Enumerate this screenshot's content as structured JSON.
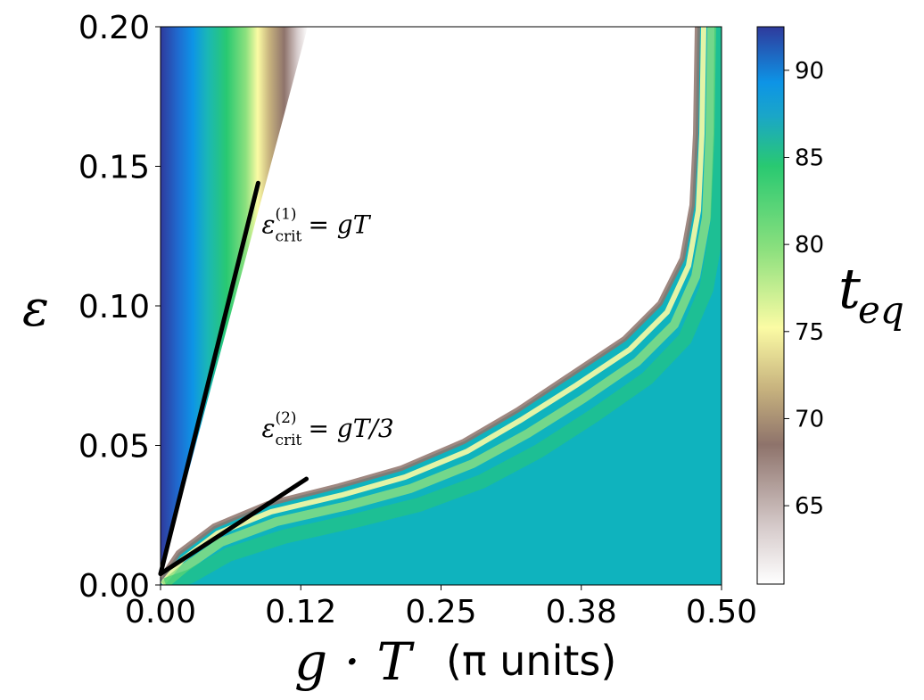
{
  "chart_data": {
    "type": "heatmap",
    "x_ticks": [
      "0.00",
      "0.12",
      "0.25",
      "0.38",
      "0.50"
    ],
    "y_ticks": [
      "0.00",
      "0.05",
      "0.10",
      "0.15",
      "0.20"
    ],
    "xlim": [
      0,
      0.5
    ],
    "ylim": [
      0,
      0.2
    ],
    "xlabel": {
      "var": "g · T",
      "unit": "(π units)"
    },
    "ylabel": "ε",
    "colorbar": {
      "label_base": "t",
      "label_sub": "eq",
      "ticks": [
        "65",
        "70",
        "75",
        "80",
        "85",
        "90"
      ],
      "tick_values": [
        65,
        70,
        75,
        80,
        85,
        90
      ],
      "range": [
        60.5,
        92.5
      ],
      "colors": [
        "#ffffff",
        "#d7cccc",
        "#8e736b",
        "#c7b27e",
        "#fbfba4",
        "#8ce07e",
        "#29c971",
        "#1aa6c8",
        "#0d94e6",
        "#2f3a9c"
      ]
    },
    "annotations": [
      {
        "text_base": "ε",
        "text_sup": "(1)",
        "text_sub": "crit",
        "text_rhs": " = gT",
        "anchor": [
          0.087,
          0.126
        ]
      },
      {
        "text_base": "ε",
        "text_sup": "(2)",
        "text_sub": "crit",
        "text_rhs": " = gT/3",
        "anchor": [
          0.087,
          0.053
        ]
      }
    ],
    "lines": [
      {
        "name": "eps-crit-1",
        "points": [
          [
            0.0,
            0.004
          ],
          [
            0.087,
            0.144
          ]
        ]
      },
      {
        "name": "eps-crit-2",
        "points": [
          [
            0.0,
            0.004
          ],
          [
            0.13,
            0.038
          ]
        ]
      }
    ]
  }
}
